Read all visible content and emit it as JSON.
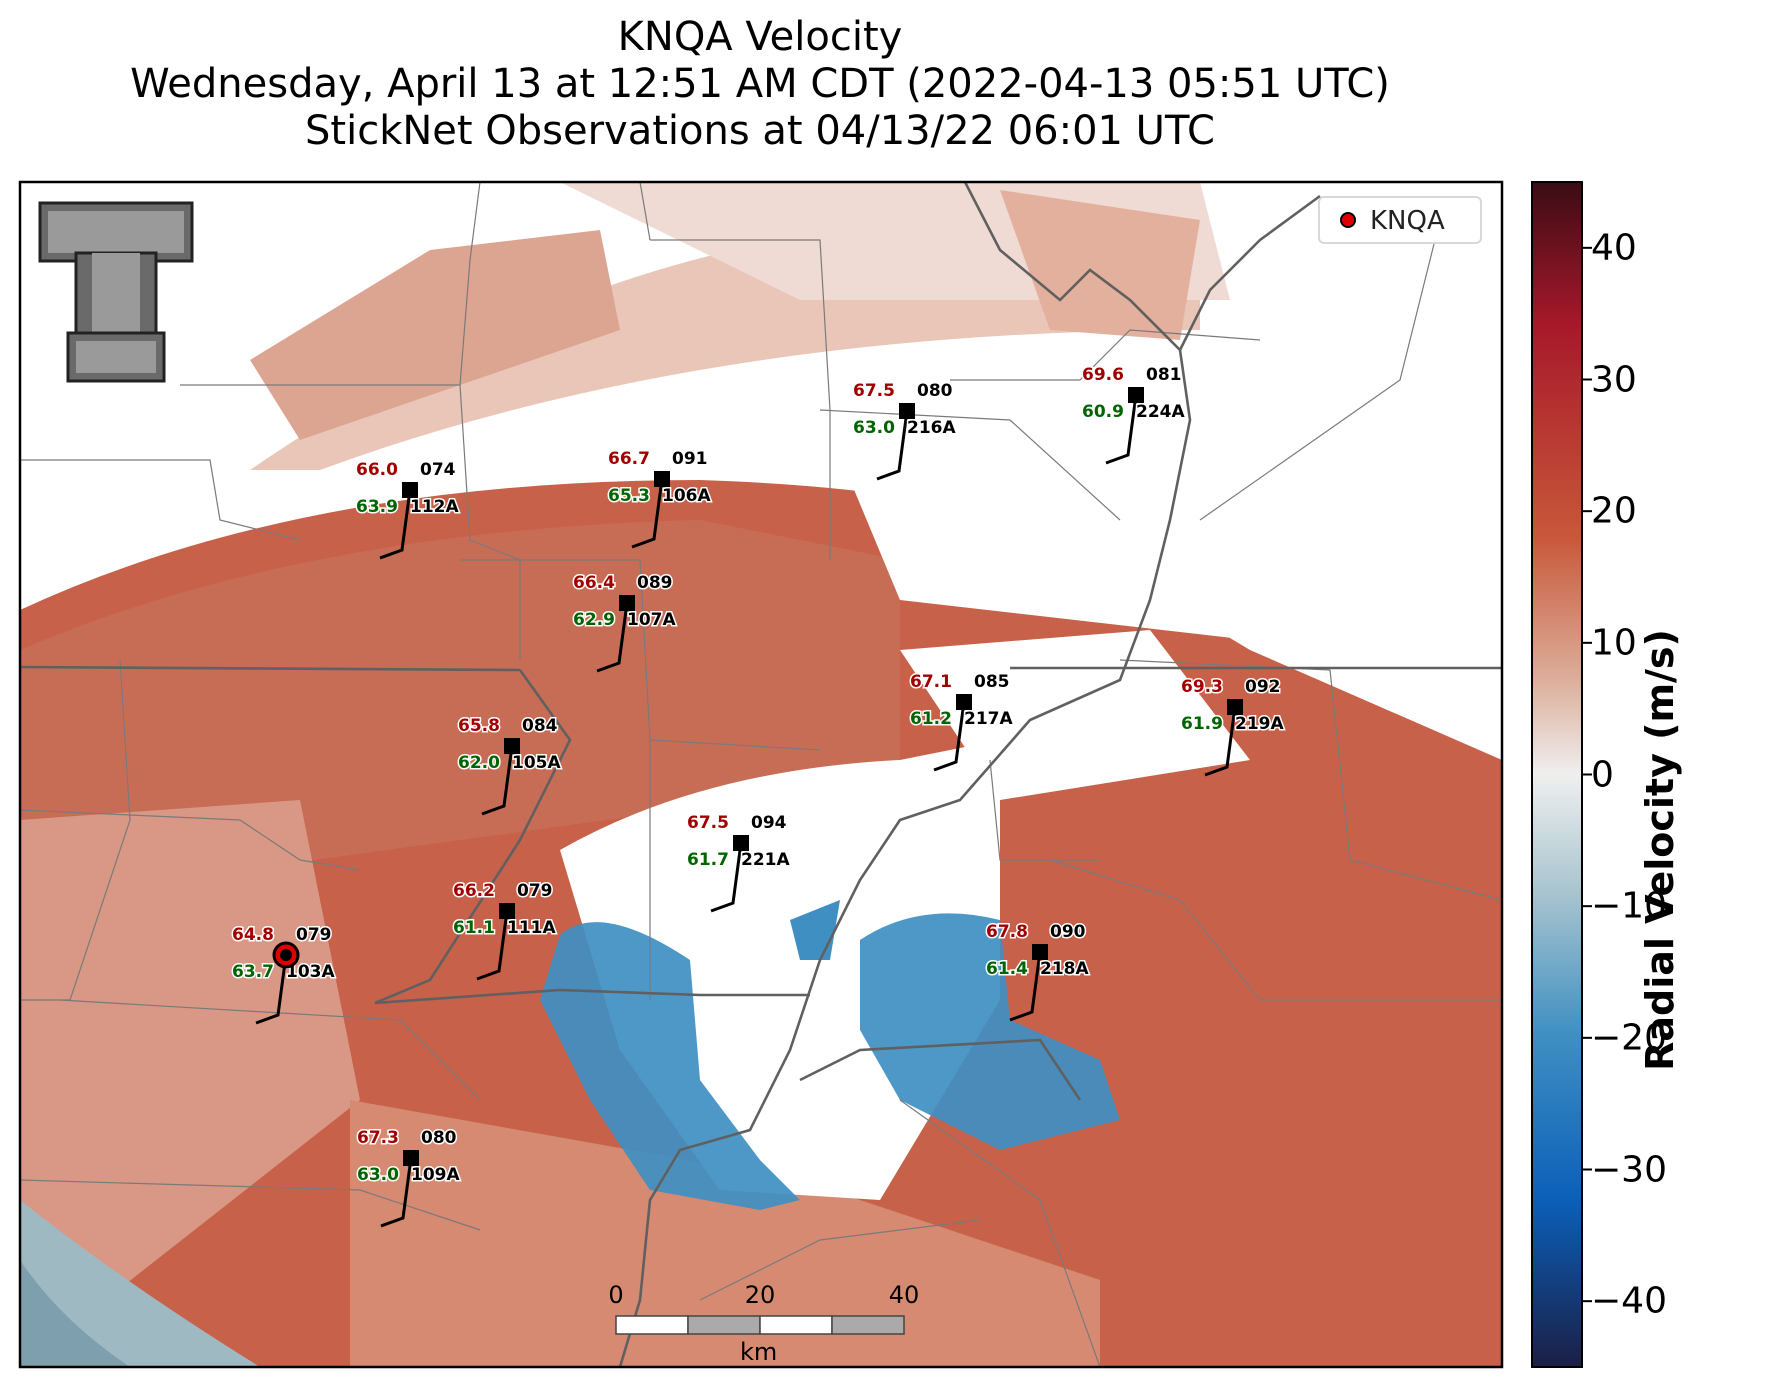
{
  "title": {
    "line1": "KNQA Velocity",
    "line2": "Wednesday, April 13 at 12:51 AM CDT (2022-04-13 05:51 UTC)",
    "line3": "StickNet Observations at 04/13/22 06:01 UTC"
  },
  "legend": {
    "label": "KNQA",
    "marker_color": "#e00000"
  },
  "colorbar": {
    "label": "Radial Velocity (m/s)",
    "range": [
      -45,
      45
    ],
    "ticks": [
      "40",
      "30",
      "20",
      "10",
      "0",
      "−10",
      "−20",
      "−30",
      "−40"
    ],
    "tick_values": [
      40,
      30,
      20,
      10,
      0,
      -10,
      -20,
      -30,
      -40
    ],
    "colors": [
      "#1b1f45",
      "#0b5fb8",
      "#3f8fc2",
      "#a8c4cf",
      "#efefef",
      "#dcae9a",
      "#c8583a",
      "#a7182a",
      "#3b0c15"
    ]
  },
  "scale_bar": {
    "labels": [
      "0",
      "20",
      "40"
    ],
    "unit": "km"
  },
  "stations": [
    {
      "id": "112A",
      "temp": "66.0",
      "dew": "63.9",
      "dir": "074"
    },
    {
      "id": "106A",
      "temp": "66.7",
      "dew": "65.3",
      "dir": "091"
    },
    {
      "id": "216A",
      "temp": "67.5",
      "dew": "63.0",
      "dir": "080"
    },
    {
      "id": "224A",
      "temp": "69.6",
      "dew": "60.9",
      "dir": "081"
    },
    {
      "id": "107A",
      "temp": "66.4",
      "dew": "62.9",
      "dir": "089"
    },
    {
      "id": "217A",
      "temp": "67.1",
      "dew": "61.2",
      "dir": "085"
    },
    {
      "id": "219A",
      "temp": "69.3",
      "dew": "61.9",
      "dir": "092"
    },
    {
      "id": "105A",
      "temp": "65.8",
      "dew": "62.0",
      "dir": "084"
    },
    {
      "id": "221A",
      "temp": "67.5",
      "dew": "61.7",
      "dir": "094"
    },
    {
      "id": "111A",
      "temp": "66.2",
      "dew": "61.1",
      "dir": "079"
    },
    {
      "id": "103A",
      "temp": "64.8",
      "dew": "63.7",
      "dir": "079"
    },
    {
      "id": "218A",
      "temp": "67.8",
      "dew": "61.4",
      "dir": "090"
    },
    {
      "id": "109A",
      "temp": "67.3",
      "dew": "63.0",
      "dir": "080"
    }
  ],
  "colors": {
    "temp": "#a00000",
    "dew": "#006400",
    "station": "#000000"
  },
  "logo": "texas-tech-double-t-logo"
}
